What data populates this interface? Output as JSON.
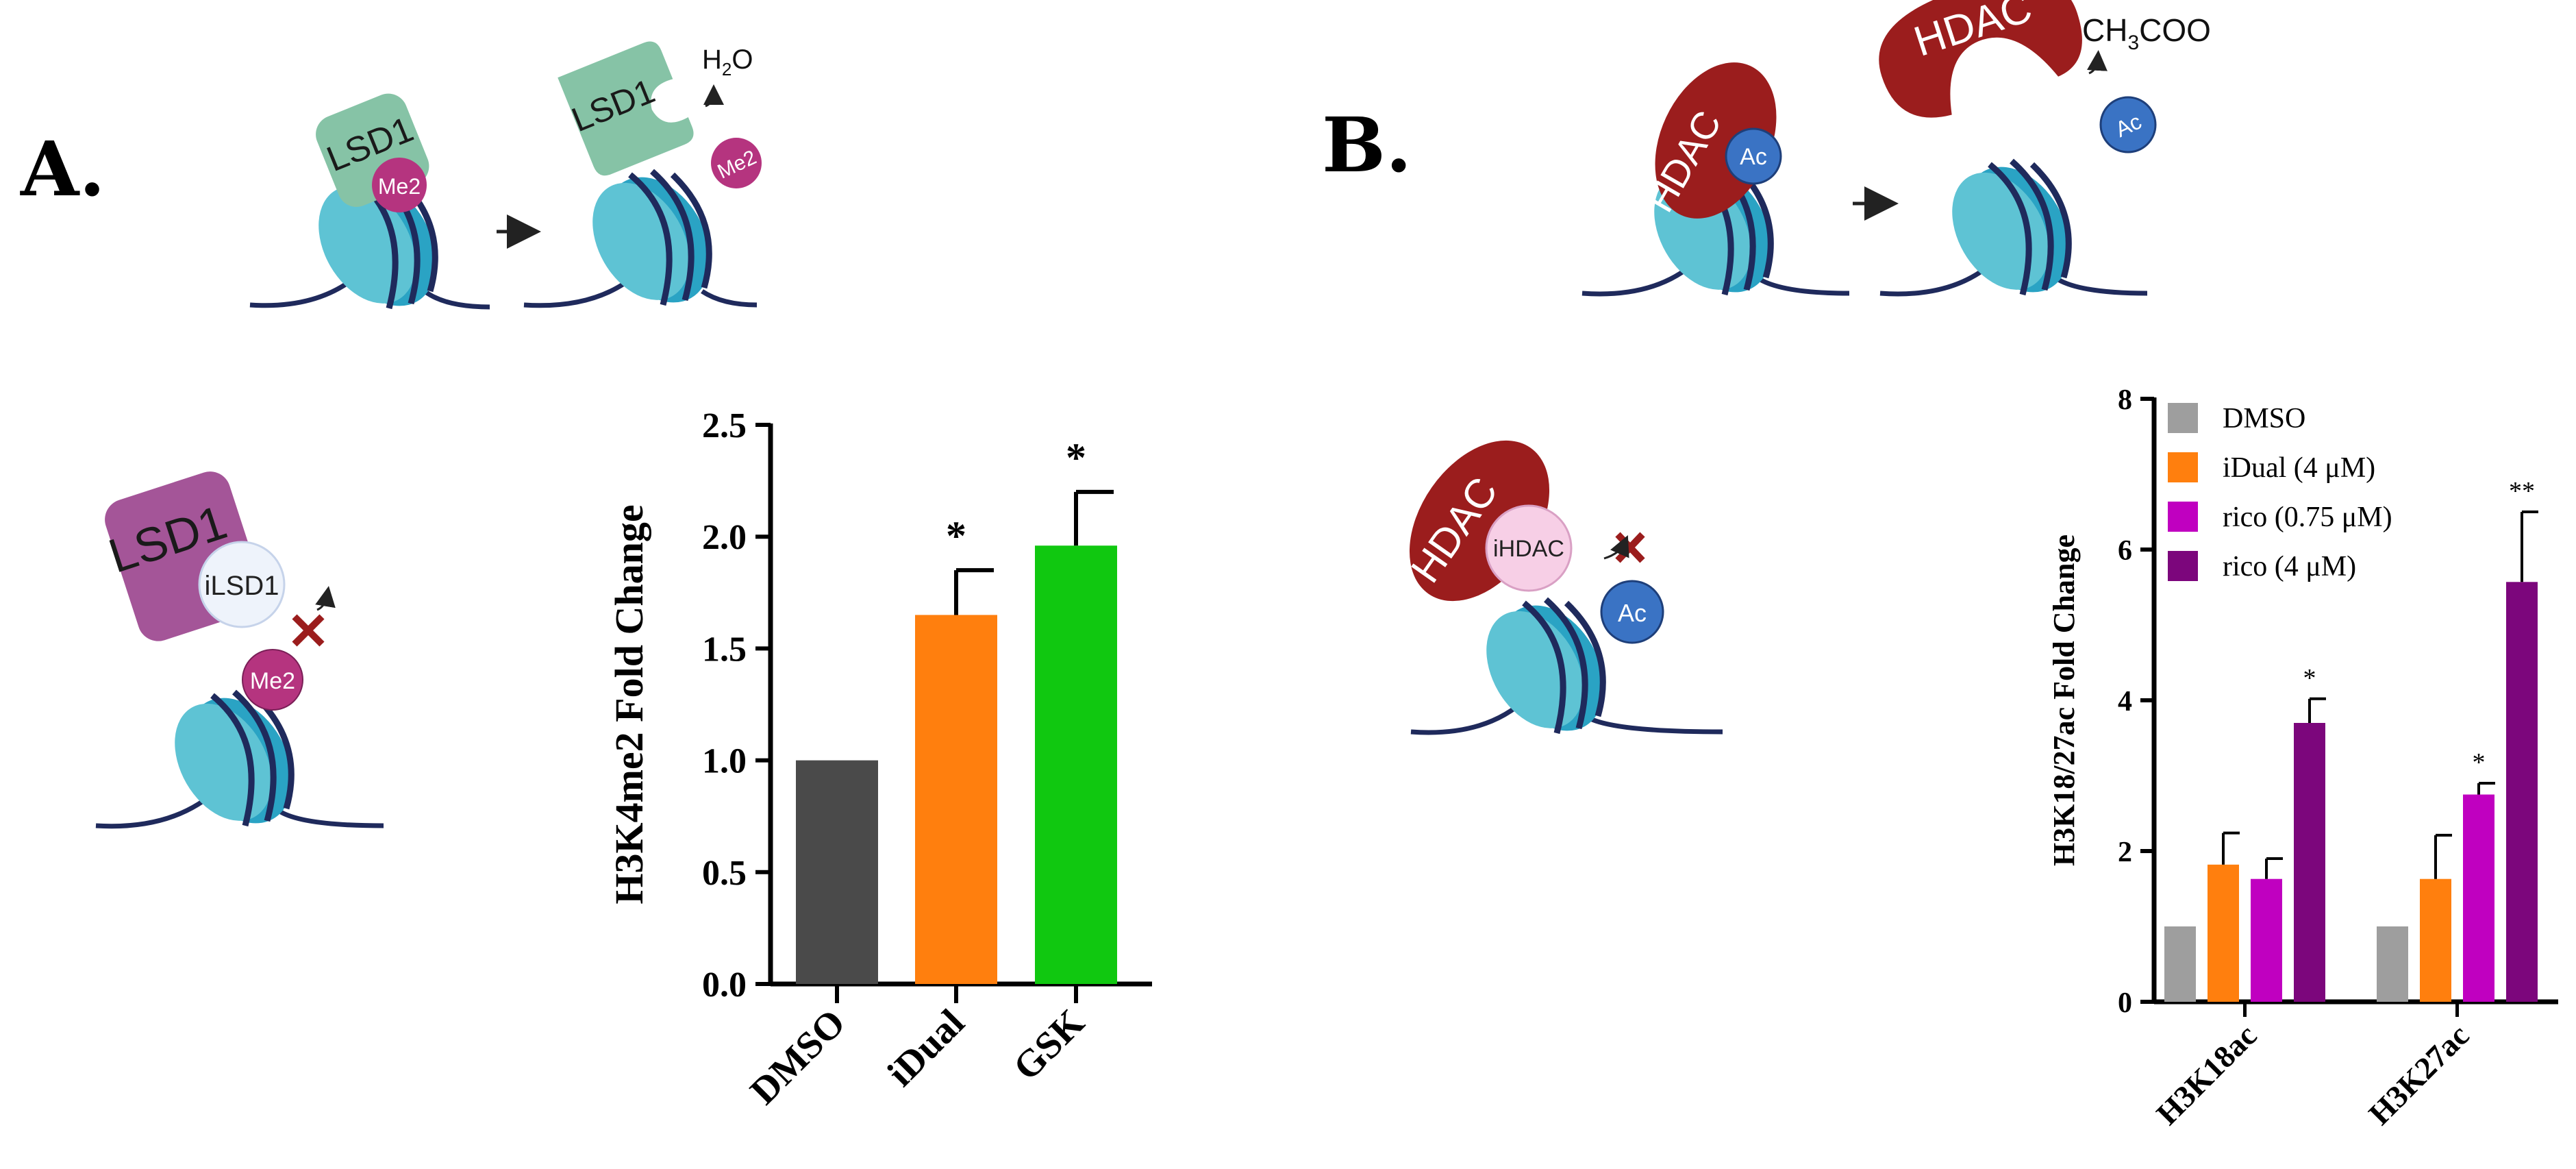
{
  "panels": {
    "a": {
      "letter": "A."
    },
    "b": {
      "letter": "B."
    }
  },
  "diagram_a": {
    "enzyme_label": "LSD1",
    "mark_label": "Me2",
    "byproduct_main": "H",
    "byproduct_sub": "2",
    "byproduct_tail": "O",
    "inhibitor_label": "iLSD1",
    "colors": {
      "enzyme": "#86c3a6",
      "mark": "#b5347f",
      "inhibited_enzyme": "#a45598",
      "inhibitor": "#eef3fb"
    }
  },
  "diagram_b": {
    "enzyme_label": "HDAC",
    "mark_label": "Ac",
    "byproduct_main": "CH",
    "byproduct_sub": "3",
    "byproduct_tail": "COO",
    "inhibitor_label": "iHDAC",
    "colors": {
      "enzyme": "#9b1d1d",
      "mark": "#3a73c4",
      "inhibitor": "#f7cfe6"
    }
  },
  "chart_data": [
    {
      "id": "chart-a",
      "type": "bar",
      "ylabel": "H3K4me2 Fold Change",
      "ylim": [
        0,
        2.5
      ],
      "yticks": [
        "0.0",
        "0.5",
        "1.0",
        "1.5",
        "2.0",
        "2.5"
      ],
      "categories": [
        "DMSO",
        "iDual",
        "GSK"
      ],
      "values": [
        1.0,
        1.65,
        1.96
      ],
      "errors": [
        0,
        0.2,
        0.24
      ],
      "significance": [
        "",
        "*",
        "*"
      ],
      "colors": [
        "#4a4a4a",
        "#ff7f0e",
        "#10c810"
      ]
    },
    {
      "id": "chart-b",
      "type": "bar",
      "ylabel": "H3K18/27ac Fold Change",
      "ylim": [
        0,
        8
      ],
      "yticks": [
        "0",
        "2",
        "4",
        "6",
        "8"
      ],
      "categories": [
        "H3K18ac",
        "H3K27ac"
      ],
      "series": [
        {
          "name": "DMSO",
          "values": [
            1.0,
            1.0
          ],
          "errors": [
            0,
            0
          ],
          "significance": [
            "",
            ""
          ],
          "color": "#9e9e9e"
        },
        {
          "name": "iDual (4 μM)",
          "values": [
            1.82,
            1.63
          ],
          "errors": [
            0.42,
            0.58
          ],
          "significance": [
            "",
            ""
          ],
          "color": "#ff7f0e"
        },
        {
          "name": "rico (0.75 μM)",
          "values": [
            1.63,
            2.75
          ],
          "errors": [
            0.27,
            0.15
          ],
          "significance": [
            "",
            "*"
          ],
          "color": "#c000c0"
        },
        {
          "name": "rico (4 μM)",
          "values": [
            3.7,
            5.57
          ],
          "errors": [
            0.32,
            0.93
          ],
          "significance": [
            "*",
            "**"
          ],
          "color": "#7c067c"
        }
      ],
      "legend_position": "top-left"
    }
  ]
}
